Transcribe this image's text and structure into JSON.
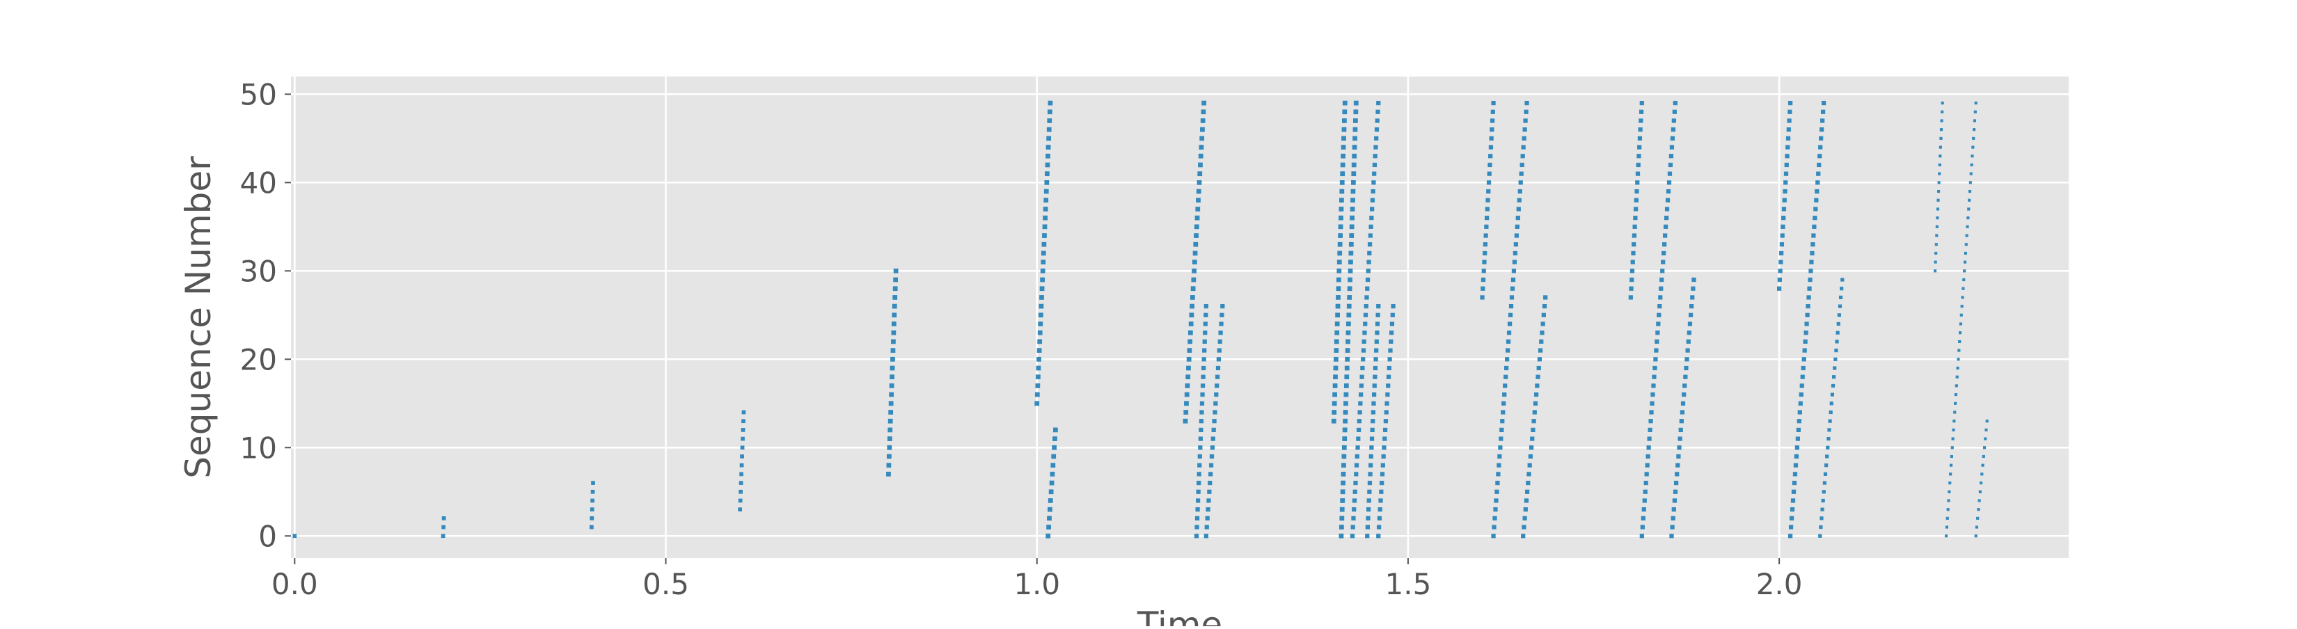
{
  "chart_data": {
    "type": "scatter",
    "style": "ggplot",
    "xlabel": "Time",
    "ylabel": "Sequence Number",
    "xlim": [
      -0.005,
      2.39
    ],
    "ylim": [
      -2.5,
      52
    ],
    "xticks": [
      0.0,
      0.5,
      1.0,
      1.5,
      2.0
    ],
    "xtick_labels": [
      "0.0",
      "0.5",
      "1.0",
      "1.5",
      "2.0"
    ],
    "yticks": [
      0,
      10,
      20,
      30,
      40,
      50
    ],
    "ytick_labels": [
      "0",
      "10",
      "20",
      "30",
      "40",
      "50"
    ],
    "grid": true,
    "legend": "none",
    "colors": {
      "marker": "#348ABD",
      "panel": "#E5E5E5",
      "grid": "#FFFFFF",
      "text": "#555555"
    },
    "series": [
      {
        "name": "",
        "segments": [
          {
            "x0": 0.0,
            "y0": 0,
            "x1": 0.001,
            "y1": 0,
            "marker_size": 2.2
          },
          {
            "x0": 0.2,
            "y0": 0,
            "x1": 0.201,
            "y1": 2,
            "marker_size": 2.2
          },
          {
            "x0": 0.4,
            "y0": 1,
            "x1": 0.402,
            "y1": 6,
            "marker_size": 2.2
          },
          {
            "x0": 0.6,
            "y0": 3,
            "x1": 0.605,
            "y1": 14,
            "marker_size": 2.2
          },
          {
            "x0": 0.8,
            "y0": 7,
            "x1": 0.81,
            "y1": 30,
            "marker_size": 2.6
          },
          {
            "x0": 1.0,
            "y0": 15,
            "x1": 1.018,
            "y1": 49,
            "marker_size": 2.6
          },
          {
            "x0": 1.015,
            "y0": 0,
            "x1": 1.025,
            "y1": 12,
            "marker_size": 2.6
          },
          {
            "x0": 1.2,
            "y0": 13,
            "x1": 1.225,
            "y1": 49,
            "marker_size": 2.6
          },
          {
            "x0": 1.215,
            "y0": 0,
            "x1": 1.228,
            "y1": 26,
            "marker_size": 2.4
          },
          {
            "x0": 1.228,
            "y0": 0,
            "x1": 1.25,
            "y1": 26,
            "marker_size": 2.4
          },
          {
            "x0": 1.4,
            "y0": 13,
            "x1": 1.415,
            "y1": 49,
            "marker_size": 2.6
          },
          {
            "x0": 1.41,
            "y0": 0,
            "x1": 1.43,
            "y1": 49,
            "marker_size": 2.6
          },
          {
            "x0": 1.425,
            "y0": 0,
            "x1": 1.46,
            "y1": 49,
            "marker_size": 2.4
          },
          {
            "x0": 1.445,
            "y0": 0,
            "x1": 1.46,
            "y1": 26,
            "marker_size": 2.4
          },
          {
            "x0": 1.46,
            "y0": 0,
            "x1": 1.48,
            "y1": 26,
            "marker_size": 2.4
          },
          {
            "x0": 1.6,
            "y0": 27,
            "x1": 1.615,
            "y1": 49,
            "marker_size": 2.4
          },
          {
            "x0": 1.615,
            "y0": 0,
            "x1": 1.66,
            "y1": 49,
            "marker_size": 2.4
          },
          {
            "x0": 1.655,
            "y0": 0,
            "x1": 1.685,
            "y1": 27,
            "marker_size": 2.4
          },
          {
            "x0": 1.8,
            "y0": 27,
            "x1": 1.815,
            "y1": 49,
            "marker_size": 2.4
          },
          {
            "x0": 1.815,
            "y0": 0,
            "x1": 1.86,
            "y1": 49,
            "marker_size": 2.4
          },
          {
            "x0": 1.855,
            "y0": 0,
            "x1": 1.885,
            "y1": 29,
            "marker_size": 2.4
          },
          {
            "x0": 2.0,
            "y0": 28,
            "x1": 2.015,
            "y1": 49,
            "marker_size": 2.4
          },
          {
            "x0": 2.015,
            "y0": 0,
            "x1": 2.06,
            "y1": 49,
            "marker_size": 2.4
          },
          {
            "x0": 2.055,
            "y0": 0,
            "x1": 2.085,
            "y1": 29,
            "marker_size": 2.0
          },
          {
            "x0": 2.21,
            "y0": 30,
            "x1": 2.22,
            "y1": 49,
            "marker_size": 1.6
          },
          {
            "x0": 2.225,
            "y0": 0,
            "x1": 2.265,
            "y1": 49,
            "marker_size": 1.6
          },
          {
            "x0": 2.265,
            "y0": 0,
            "x1": 2.28,
            "y1": 13,
            "marker_size": 1.6
          }
        ]
      }
    ]
  }
}
